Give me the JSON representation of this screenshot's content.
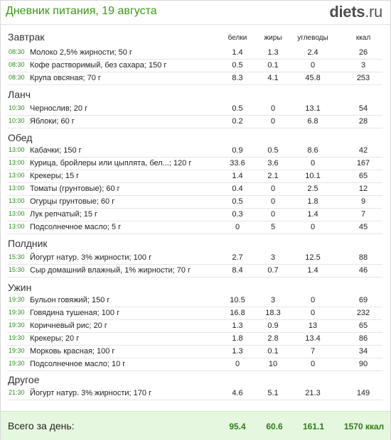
{
  "header": {
    "title": "Дневник питания, 19 августа",
    "logo_main": "diets",
    "logo_domain": ".ru"
  },
  "columns": {
    "protein": "белки",
    "fat": "жиры",
    "carbs": "углеводы",
    "kcal": "ккал"
  },
  "sections": [
    {
      "title": "Завтрак",
      "rows": [
        {
          "time": "08:30",
          "name": "Молоко 2,5% жирности; 50 г",
          "protein": "1.4",
          "fat": "1.3",
          "carbs": "2.4",
          "kcal": "26"
        },
        {
          "time": "08:30",
          "name": "Кофе растворимый, без сахара; 150 г",
          "protein": "0.5",
          "fat": "0.1",
          "carbs": "0",
          "kcal": "3"
        },
        {
          "time": "08:30",
          "name": "Крупа овсяная; 70 г",
          "protein": "8.3",
          "fat": "4.1",
          "carbs": "45.8",
          "kcal": "253"
        }
      ]
    },
    {
      "title": "Ланч",
      "rows": [
        {
          "time": "10:30",
          "name": "Чернослив; 20 г",
          "protein": "0.5",
          "fat": "0",
          "carbs": "13.1",
          "kcal": "54"
        },
        {
          "time": "10:30",
          "name": "Яблоки; 60 г",
          "protein": "0.2",
          "fat": "0",
          "carbs": "6.8",
          "kcal": "28"
        }
      ]
    },
    {
      "title": "Обед",
      "rows": [
        {
          "time": "13:00",
          "name": "Кабачки; 150 г",
          "protein": "0.9",
          "fat": "0.5",
          "carbs": "8.6",
          "kcal": "42"
        },
        {
          "time": "13:00",
          "name": "Курица, бройлеры или цыплята, бел...; 120 г",
          "protein": "33.6",
          "fat": "3.6",
          "carbs": "0",
          "kcal": "167"
        },
        {
          "time": "13:00",
          "name": "Крекеры; 15 г",
          "protein": "1.4",
          "fat": "2.1",
          "carbs": "10.1",
          "kcal": "65"
        },
        {
          "time": "13:00",
          "name": "Томаты (грунтовые); 60 г",
          "protein": "0.4",
          "fat": "0",
          "carbs": "2.5",
          "kcal": "12"
        },
        {
          "time": "13:00",
          "name": "Огурцы грунтовые; 60 г",
          "protein": "0.5",
          "fat": "0",
          "carbs": "1.8",
          "kcal": "9"
        },
        {
          "time": "13:00",
          "name": "Лук репчатый; 15 г",
          "protein": "0.3",
          "fat": "0",
          "carbs": "1.4",
          "kcal": "7"
        },
        {
          "time": "13:00",
          "name": "Подсолнечное масло; 5 г",
          "protein": "0",
          "fat": "5",
          "carbs": "0",
          "kcal": "45"
        }
      ]
    },
    {
      "title": "Полдник",
      "rows": [
        {
          "time": "15:30",
          "name": "Йогурт натур. 3% жирности; 100 г",
          "protein": "2.7",
          "fat": "3",
          "carbs": "12.5",
          "kcal": "88"
        },
        {
          "time": "15:30",
          "name": "Сыр домашний влажный, 1% жирности; 70 г",
          "protein": "8.4",
          "fat": "0.7",
          "carbs": "1.4",
          "kcal": "46"
        }
      ]
    },
    {
      "title": "Ужин",
      "rows": [
        {
          "time": "19:30",
          "name": "Бульон говяжий; 150 г",
          "protein": "10.5",
          "fat": "3",
          "carbs": "0",
          "kcal": "69"
        },
        {
          "time": "19:30",
          "name": "Говядина тушеная; 100 г",
          "protein": "16.8",
          "fat": "18.3",
          "carbs": "0",
          "kcal": "232"
        },
        {
          "time": "19:30",
          "name": "Коричневый рис; 20 г",
          "protein": "1.3",
          "fat": "0.9",
          "carbs": "13",
          "kcal": "65"
        },
        {
          "time": "19:30",
          "name": "Крекеры; 20 г",
          "protein": "1.8",
          "fat": "2.8",
          "carbs": "13.4",
          "kcal": "86"
        },
        {
          "time": "19:30",
          "name": "Морковь красная; 100 г",
          "protein": "1.3",
          "fat": "0.1",
          "carbs": "7",
          "kcal": "34"
        },
        {
          "time": "19:30",
          "name": "Подсолнечное масло; 10 г",
          "protein": "0",
          "fat": "10",
          "carbs": "0",
          "kcal": "90"
        }
      ]
    },
    {
      "title": "Другое",
      "rows": [
        {
          "time": "21:30",
          "name": "Йогурт натур. 3% жирности; 170 г",
          "protein": "4.6",
          "fat": "5.1",
          "carbs": "21.3",
          "kcal": "149"
        }
      ]
    }
  ],
  "totals": {
    "label": "Всего за день:",
    "protein": "95.4",
    "fat": "60.6",
    "carbs": "161.1",
    "kcal": "1570 ккал"
  }
}
